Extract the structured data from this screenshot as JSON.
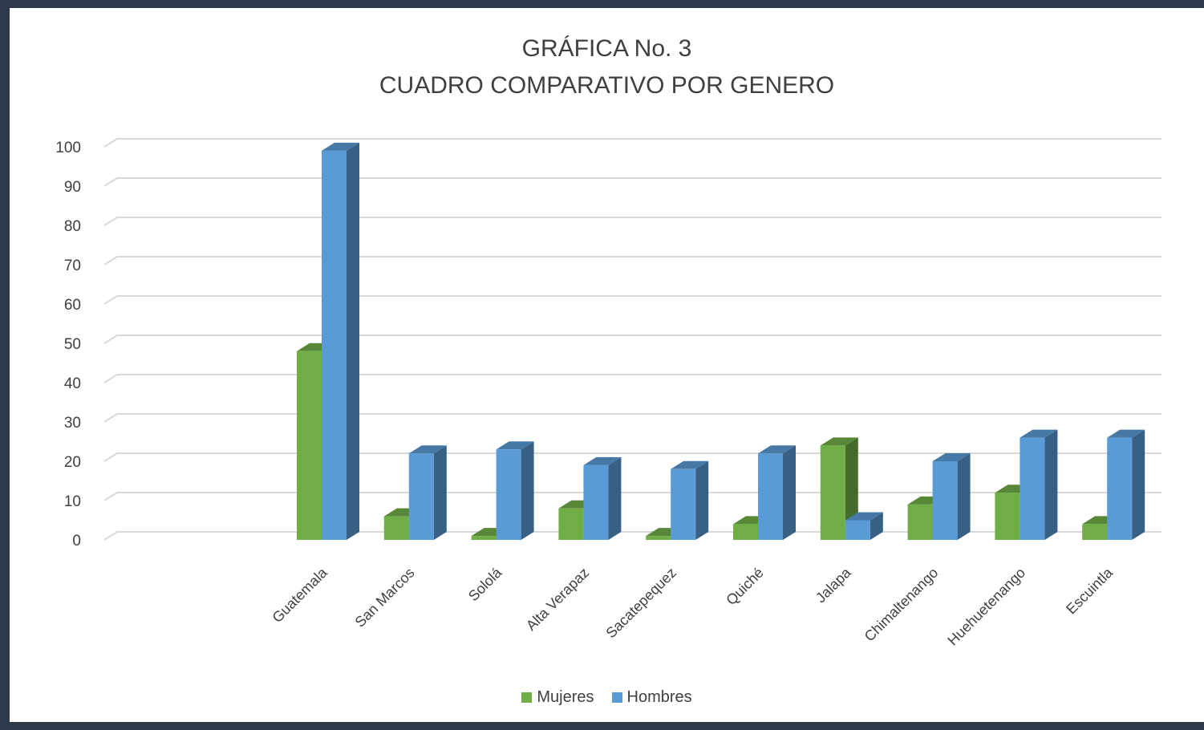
{
  "chart_data": {
    "type": "bar",
    "style": "3d-clustered-column",
    "title": "GRÁFICA No. 3",
    "subtitle": "CUADRO COMPARATIVO POR GENERO",
    "categories": [
      "Guatemala",
      "San Marcos",
      "Sololá",
      "Alta Verapaz",
      "Sacatepequez",
      "Quiché",
      "Jalapa",
      "Chimaltenango",
      "Huehuetenango",
      "Escuintla"
    ],
    "series": [
      {
        "name": "Mujeres",
        "color": "#70ad47",
        "values": [
          48,
          6,
          1,
          8,
          1,
          4,
          24,
          9,
          12,
          4
        ]
      },
      {
        "name": "Hombres",
        "color": "#5b9bd5",
        "values": [
          99,
          22,
          23,
          19,
          18,
          22,
          5,
          20,
          26,
          26
        ]
      }
    ],
    "ylim": [
      0,
      100
    ],
    "yticks": [
      0,
      10,
      20,
      30,
      40,
      50,
      60,
      70,
      80,
      90,
      100
    ],
    "grid": true,
    "legend_position": "bottom"
  }
}
